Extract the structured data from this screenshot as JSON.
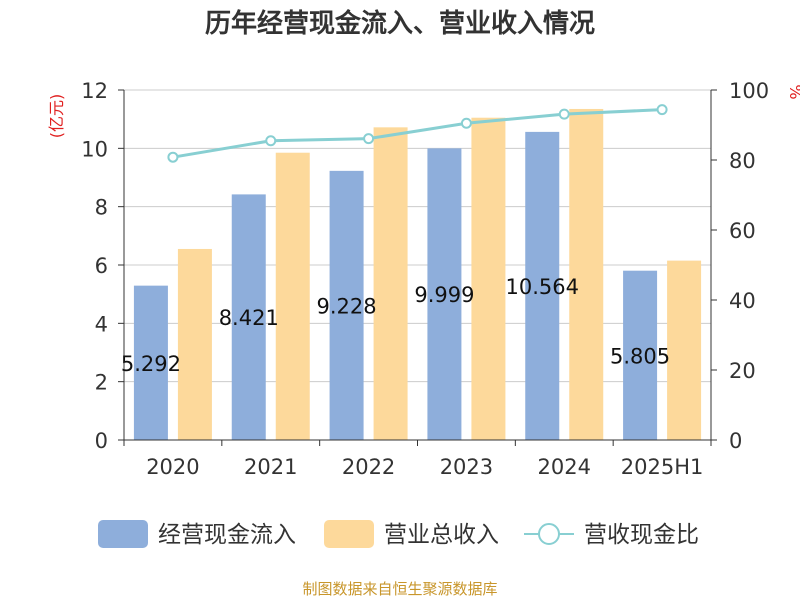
{
  "chart_data": {
    "type": "bar",
    "title": "历年经营现金流入、营业收入情况",
    "categories": [
      "2020",
      "2021",
      "2022",
      "2023",
      "2024",
      "2025H1"
    ],
    "series": [
      {
        "name": "经营现金流入",
        "type": "bar",
        "axis": "left",
        "color": "#8eaedb",
        "values": [
          5.292,
          8.421,
          9.228,
          9.999,
          10.564,
          5.805
        ],
        "labels": [
          "5.292",
          "8.421",
          "9.228",
          "9.999",
          "10.564",
          "5.805"
        ]
      },
      {
        "name": "营业总收入",
        "type": "bar",
        "axis": "left",
        "color": "#fdd99b",
        "values": [
          6.55,
          9.85,
          10.72,
          11.05,
          11.35,
          6.15
        ]
      },
      {
        "name": "营收现金比",
        "type": "line",
        "axis": "right",
        "color": "#88cfd2",
        "values": [
          80.8,
          85.5,
          86.1,
          90.5,
          93.1,
          94.4
        ]
      }
    ],
    "y_left": {
      "label": "(亿元)",
      "range": [
        0,
        12
      ],
      "ticks": [
        0,
        2,
        4,
        6,
        8,
        10,
        12
      ]
    },
    "y_right": {
      "label": "%",
      "range": [
        0,
        100
      ],
      "ticks": [
        0,
        20,
        40,
        60,
        80,
        100
      ]
    },
    "grid": true,
    "legend_position": "bottom",
    "source_note": "制图数据来自恒生聚源数据库",
    "colors": {
      "left_axis_label": "#e02020",
      "right_axis_label": "#e02020",
      "source_note": "#c8962b",
      "axis": "#333333",
      "grid": "#cccccc"
    }
  }
}
